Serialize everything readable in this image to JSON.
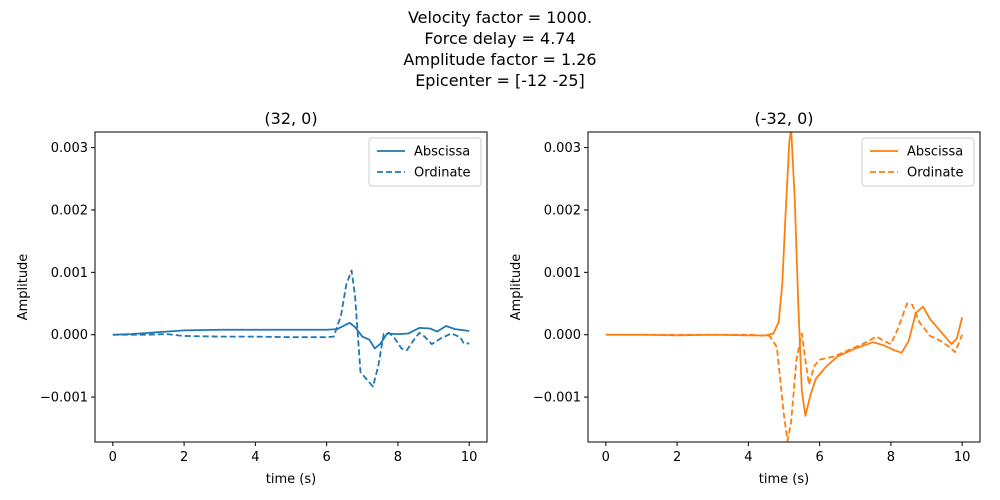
{
  "suptitle": {
    "lines": [
      "Velocity factor = 1000.",
      "Force delay = 4.74",
      "Amplitude factor = 1.26",
      "Epicenter = [-12 -25]"
    ]
  },
  "chart_data": [
    {
      "type": "line",
      "title": "(32, 0)",
      "xlabel": "time (s)",
      "ylabel": "Amplitude",
      "xlim": [
        -0.5,
        10.5
      ],
      "ylim": [
        -0.00172,
        0.00325
      ],
      "xticks": [
        0,
        2,
        4,
        6,
        8,
        10
      ],
      "xtick_labels": [
        "0",
        "2",
        "4",
        "6",
        "8",
        "10"
      ],
      "yticks": [
        -0.001,
        0.0,
        0.001,
        0.002,
        0.003
      ],
      "ytick_labels": [
        "−0.001",
        "0.000",
        "0.001",
        "0.002",
        "0.003"
      ],
      "legend": {
        "position": "top-right",
        "entries": [
          "Abscissa",
          "Ordinate"
        ]
      },
      "series": [
        {
          "name": "Abscissa",
          "color": "#1f77b4",
          "dash": "solid",
          "points": [
            [
              0,
              0
            ],
            [
              0.5,
              1e-05
            ],
            [
              1,
              3e-05
            ],
            [
              1.5,
              5e-05
            ],
            [
              2,
              7e-05
            ],
            [
              3,
              8e-05
            ],
            [
              4,
              8e-05
            ],
            [
              5,
              8e-05
            ],
            [
              6,
              8e-05
            ],
            [
              6.3,
              9e-05
            ],
            [
              6.5,
              0.00015
            ],
            [
              6.65,
              0.00019
            ],
            [
              6.8,
              0.00012
            ],
            [
              7.0,
              -3e-05
            ],
            [
              7.2,
              -8e-05
            ],
            [
              7.35,
              -0.00022
            ],
            [
              7.5,
              -0.00015
            ],
            [
              7.7,
              2e-05
            ],
            [
              8.0,
              1e-05
            ],
            [
              8.3,
              2e-05
            ],
            [
              8.6,
              0.00011
            ],
            [
              8.9,
              0.0001
            ],
            [
              9.1,
              5e-05
            ],
            [
              9.35,
              0.00014
            ],
            [
              9.6,
              9e-05
            ],
            [
              10,
              6e-05
            ]
          ]
        },
        {
          "name": "Ordinate",
          "color": "#1f77b4",
          "dash": "dashed",
          "points": [
            [
              0,
              0
            ],
            [
              1,
              0
            ],
            [
              1.5,
              1e-05
            ],
            [
              2,
              -2e-05
            ],
            [
              3,
              -3e-05
            ],
            [
              4,
              -3e-05
            ],
            [
              5,
              -4e-05
            ],
            [
              6,
              -4e-05
            ],
            [
              6.2,
              -3e-05
            ],
            [
              6.4,
              0.0003
            ],
            [
              6.55,
              0.0008
            ],
            [
              6.7,
              0.00103
            ],
            [
              6.8,
              0.0006
            ],
            [
              6.95,
              -0.0006
            ],
            [
              7.1,
              -0.0007
            ],
            [
              7.3,
              -0.00083
            ],
            [
              7.45,
              -0.0005
            ],
            [
              7.6,
              1e-05
            ],
            [
              7.75,
              3e-05
            ],
            [
              7.9,
              -5e-05
            ],
            [
              8.1,
              -0.00022
            ],
            [
              8.25,
              -0.00025
            ],
            [
              8.45,
              -8e-05
            ],
            [
              8.6,
              3e-05
            ],
            [
              8.75,
              -3e-05
            ],
            [
              8.95,
              -0.00015
            ],
            [
              9.2,
              -6e-05
            ],
            [
              9.5,
              2e-05
            ],
            [
              9.75,
              -4e-05
            ],
            [
              9.85,
              -0.00014
            ],
            [
              10,
              -0.00014
            ]
          ]
        }
      ]
    },
    {
      "type": "line",
      "title": "(-32, 0)",
      "xlabel": "time (s)",
      "ylabel": "Amplitude",
      "xlim": [
        -0.5,
        10.5
      ],
      "ylim": [
        -0.00172,
        0.00325
      ],
      "xticks": [
        0,
        2,
        4,
        6,
        8,
        10
      ],
      "xtick_labels": [
        "0",
        "2",
        "4",
        "6",
        "8",
        "10"
      ],
      "yticks": [
        -0.001,
        0.0,
        0.001,
        0.002,
        0.003
      ],
      "ytick_labels": [
        "−0.001",
        "0.000",
        "0.001",
        "0.002",
        "0.003"
      ],
      "legend": {
        "position": "top-right",
        "entries": [
          "Abscissa",
          "Ordinate"
        ]
      },
      "series": [
        {
          "name": "Abscissa",
          "color": "#ff7f0e",
          "dash": "solid",
          "points": [
            [
              0,
              0
            ],
            [
              1,
              0
            ],
            [
              2,
              -1e-05
            ],
            [
              3,
              0
            ],
            [
              4,
              -1e-05
            ],
            [
              4.5,
              -1e-05
            ],
            [
              4.7,
              2e-05
            ],
            [
              4.85,
              0.0002
            ],
            [
              4.95,
              0.0008
            ],
            [
              5.05,
              0.002
            ],
            [
              5.15,
              0.0031
            ],
            [
              5.2,
              0.0033
            ],
            [
              5.3,
              0.0022
            ],
            [
              5.4,
              0.0005
            ],
            [
              5.5,
              -0.0009
            ],
            [
              5.6,
              -0.0013
            ],
            [
              5.75,
              -0.00095
            ],
            [
              5.9,
              -0.0007
            ],
            [
              6.2,
              -0.0005
            ],
            [
              6.5,
              -0.00035
            ],
            [
              7.0,
              -0.00022
            ],
            [
              7.5,
              -0.00012
            ],
            [
              7.8,
              -0.00017
            ],
            [
              8.1,
              -0.00025
            ],
            [
              8.3,
              -0.00029
            ],
            [
              8.5,
              -0.0001
            ],
            [
              8.7,
              0.00035
            ],
            [
              8.9,
              0.00045
            ],
            [
              9.1,
              0.00025
            ],
            [
              9.4,
              5e-05
            ],
            [
              9.7,
              -0.00015
            ],
            [
              9.85,
              -6e-05
            ],
            [
              10,
              0.00028
            ]
          ]
        },
        {
          "name": "Ordinate",
          "color": "#ff7f0e",
          "dash": "dashed",
          "points": [
            [
              0,
              0
            ],
            [
              1,
              0
            ],
            [
              2,
              0
            ],
            [
              3,
              0
            ],
            [
              4,
              0
            ],
            [
              4.6,
              -2e-05
            ],
            [
              4.8,
              -0.0002
            ],
            [
              5.0,
              -0.0013
            ],
            [
              5.1,
              -0.0017
            ],
            [
              5.2,
              -0.0014
            ],
            [
              5.35,
              -0.0004
            ],
            [
              5.5,
              2e-05
            ],
            [
              5.6,
              -0.0004
            ],
            [
              5.7,
              -0.0008
            ],
            [
              5.85,
              -0.0005
            ],
            [
              6.0,
              -0.0004
            ],
            [
              6.4,
              -0.00035
            ],
            [
              6.8,
              -0.00025
            ],
            [
              7.2,
              -0.00015
            ],
            [
              7.6,
              -3e-05
            ],
            [
              7.8,
              -0.0001
            ],
            [
              8.0,
              -0.00015
            ],
            [
              8.2,
              0.0001
            ],
            [
              8.45,
              0.0005
            ],
            [
              8.6,
              0.00048
            ],
            [
              8.8,
              0.0002
            ],
            [
              9.1,
              -2e-05
            ],
            [
              9.4,
              -0.0001
            ],
            [
              9.65,
              -0.0002
            ],
            [
              9.8,
              -0.00028
            ],
            [
              10,
              0.0
            ]
          ]
        }
      ]
    }
  ]
}
